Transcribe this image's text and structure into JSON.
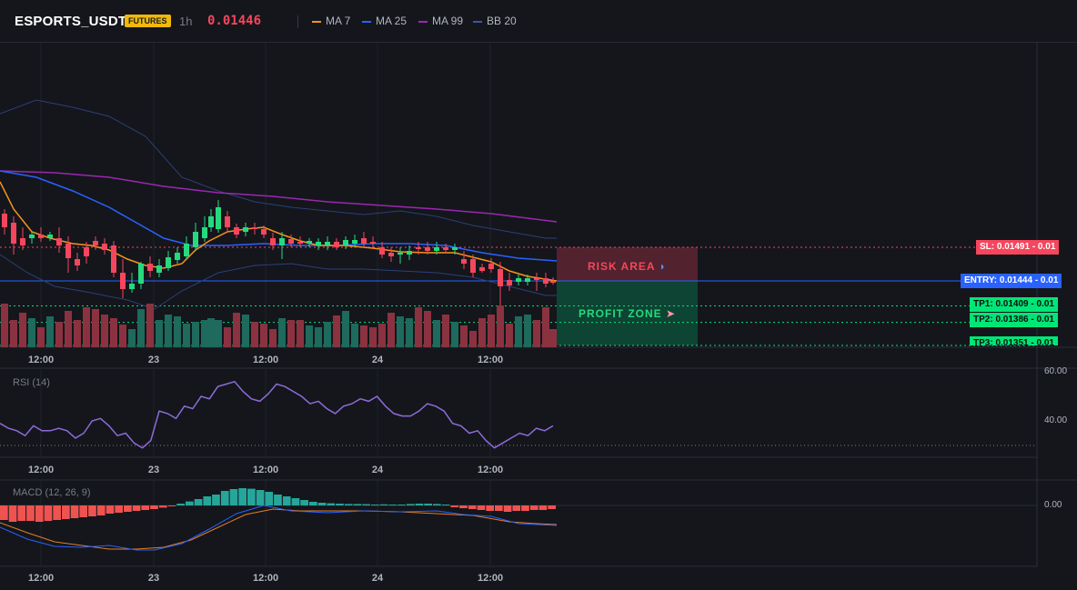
{
  "header": {
    "symbol": "ESPORTS_USDT",
    "badge": "FUTURES",
    "timeframe": "1h",
    "price": "0.01446",
    "indicators": [
      {
        "label": "MA 7",
        "color": "#f7931a"
      },
      {
        "label": "MA 25",
        "color": "#2962ff"
      },
      {
        "label": "MA 99",
        "color": "#9c27b0"
      },
      {
        "label": "BB 20",
        "color": "#3a5aa8"
      }
    ]
  },
  "colors": {
    "up": "#26d97f",
    "down": "#f6465d",
    "up_vol": "#1e6a5c",
    "down_vol": "#8b3240",
    "entry": "#2962ff",
    "sl": "#f6465d",
    "tp": "#00e676"
  },
  "time_axis": [
    "12:00",
    "23",
    "12:00",
    "24",
    "12:00"
  ],
  "levels": {
    "sl": {
      "label": "SL: 0.01491",
      "suffix": "- 0.01",
      "value": 0.01491
    },
    "entry": {
      "label": "ENTRY: 0.01444",
      "suffix": "- 0.01",
      "value": 0.01444
    },
    "tp1": {
      "label": "TP1: 0.01409",
      "suffix": "- 0.01",
      "value": 0.01409
    },
    "tp2": {
      "label": "TP2: 0.01386",
      "suffix": "- 0.01",
      "value": 0.01386
    },
    "tp3": {
      "label": "TP3: 0.01351",
      "suffix": "- 0.01",
      "value": 0.01351
    }
  },
  "zones": {
    "risk": "RISK AREA",
    "profit": "PROFIT ZONE"
  },
  "rsi": {
    "title": "RSI (14)",
    "ticks": [
      "60.00",
      "40.00"
    ],
    "values": [
      39,
      37,
      36,
      34,
      38,
      36,
      36,
      37,
      36,
      33,
      35,
      40,
      41,
      38,
      34,
      35,
      31,
      29,
      32,
      44,
      43,
      41,
      46,
      45,
      50,
      49,
      54,
      55,
      56,
      52,
      49,
      48,
      51,
      55,
      54,
      52,
      50,
      47,
      48,
      45,
      43,
      46,
      47,
      49,
      48,
      50,
      46,
      43,
      42,
      42,
      44,
      47,
      46,
      44,
      39,
      38,
      35,
      36,
      32,
      29,
      31,
      33,
      35,
      34,
      37,
      36,
      38
    ]
  },
  "macd": {
    "title": "MACD (12, 26, 9)",
    "tick": "0.00",
    "hist": [
      -0.8,
      -0.9,
      -0.85,
      -0.85,
      -0.9,
      -0.85,
      -0.8,
      -0.75,
      -0.7,
      -0.65,
      -0.6,
      -0.55,
      -0.45,
      -0.4,
      -0.35,
      -0.3,
      -0.25,
      -0.2,
      -0.12,
      -0.05,
      0.1,
      0.22,
      0.35,
      0.5,
      0.6,
      0.8,
      0.9,
      0.95,
      0.92,
      0.85,
      0.75,
      0.6,
      0.5,
      0.4,
      0.3,
      0.2,
      0.15,
      0.12,
      0.1,
      0.08,
      0.08,
      0.07,
      0.05,
      0.06,
      0.05,
      0.05,
      0.08,
      0.1,
      0.1,
      0.08,
      0.05,
      -0.1,
      -0.15,
      -0.2,
      -0.25,
      -0.3,
      -0.3,
      -0.35,
      -0.3,
      -0.3,
      -0.25,
      -0.25,
      -0.2
    ]
  }
}
